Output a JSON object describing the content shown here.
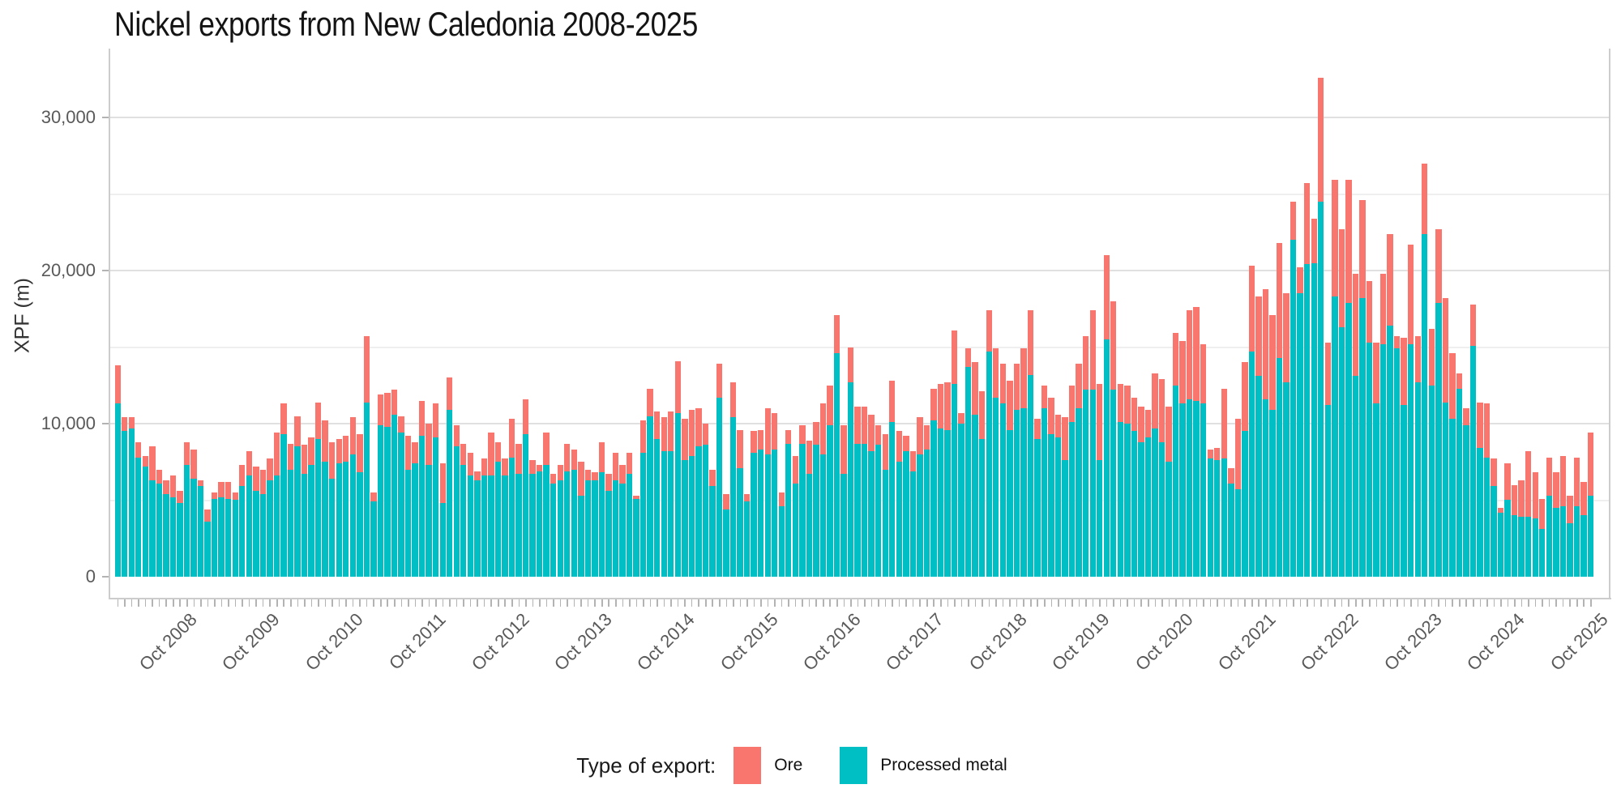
{
  "title": "Nickel exports from New Caledonia 2008-2025",
  "y_axis": {
    "title": "XPF (m)",
    "tick_labels": [
      "0",
      "10,000",
      "20,000",
      "30,000"
    ],
    "tick_values": [
      0,
      10000,
      20000,
      30000
    ],
    "minor_grid_values": [
      5000,
      15000,
      25000
    ]
  },
  "x_axis": {
    "ticks": [
      {
        "label": "Oct 2008",
        "month": "2008-10"
      },
      {
        "label": "Oct 2009",
        "month": "2009-10"
      },
      {
        "label": "Oct 2010",
        "month": "2010-10"
      },
      {
        "label": "Oct 2011",
        "month": "2011-10"
      },
      {
        "label": "Oct 2012",
        "month": "2012-10"
      },
      {
        "label": "Oct 2013",
        "month": "2013-10"
      },
      {
        "label": "Oct 2014",
        "month": "2014-10"
      },
      {
        "label": "Oct 2015",
        "month": "2015-10"
      },
      {
        "label": "Oct 2016",
        "month": "2016-10"
      },
      {
        "label": "Oct 2017",
        "month": "2017-10"
      },
      {
        "label": "Oct 2018",
        "month": "2018-10"
      },
      {
        "label": "Oct 2019",
        "month": "2019-10"
      },
      {
        "label": "Oct 2020",
        "month": "2020-10"
      },
      {
        "label": "Oct 2021",
        "month": "2021-10"
      },
      {
        "label": "Oct 2022",
        "month": "2022-10"
      },
      {
        "label": "Oct 2023",
        "month": "2023-10"
      },
      {
        "label": "Oct 2024",
        "month": "2024-10"
      },
      {
        "label": "Oct 2025",
        "month": "2025-10"
      }
    ]
  },
  "legend": {
    "title": "Type of export:",
    "items": [
      {
        "label": "Ore",
        "color": "#F8766D"
      },
      {
        "label": "Processed metal",
        "color": "#00BFC4"
      }
    ]
  },
  "colors": {
    "ore": "#F8766D",
    "processed_metal": "#00BFC4",
    "grid_major": "#e0e0e0",
    "grid_minor": "#efefef",
    "axis_line": "#cccccc",
    "tick_mark": "#b3b3b3",
    "axis_text": "#595959",
    "title_text": "#141414"
  },
  "chart_data": {
    "type": "bar",
    "stacked": true,
    "title": "Nickel exports from New Caledonia 2008-2025",
    "xlabel": "",
    "ylabel": "XPF (m)",
    "ylim": [
      0,
      34000
    ],
    "grid": true,
    "legend_position": "bottom",
    "x": [
      "2008-01",
      "2008-02",
      "2008-03",
      "2008-04",
      "2008-05",
      "2008-06",
      "2008-07",
      "2008-08",
      "2008-09",
      "2008-10",
      "2008-11",
      "2008-12",
      "2009-01",
      "2009-02",
      "2009-03",
      "2009-04",
      "2009-05",
      "2009-06",
      "2009-07",
      "2009-08",
      "2009-09",
      "2009-10",
      "2009-11",
      "2009-12",
      "2010-01",
      "2010-02",
      "2010-03",
      "2010-04",
      "2010-05",
      "2010-06",
      "2010-07",
      "2010-08",
      "2010-09",
      "2010-10",
      "2010-11",
      "2010-12",
      "2011-01",
      "2011-02",
      "2011-03",
      "2011-04",
      "2011-05",
      "2011-06",
      "2011-07",
      "2011-08",
      "2011-09",
      "2011-10",
      "2011-11",
      "2011-12",
      "2012-01",
      "2012-02",
      "2012-03",
      "2012-04",
      "2012-05",
      "2012-06",
      "2012-07",
      "2012-08",
      "2012-09",
      "2012-10",
      "2012-11",
      "2012-12",
      "2013-01",
      "2013-02",
      "2013-03",
      "2013-04",
      "2013-05",
      "2013-06",
      "2013-07",
      "2013-08",
      "2013-09",
      "2013-10",
      "2013-11",
      "2013-12",
      "2014-01",
      "2014-02",
      "2014-03",
      "2014-04",
      "2014-05",
      "2014-06",
      "2014-07",
      "2014-08",
      "2014-09",
      "2014-10",
      "2014-11",
      "2014-12",
      "2015-01",
      "2015-02",
      "2015-03",
      "2015-04",
      "2015-05",
      "2015-06",
      "2015-07",
      "2015-08",
      "2015-09",
      "2015-10",
      "2015-11",
      "2015-12",
      "2016-01",
      "2016-02",
      "2016-03",
      "2016-04",
      "2016-05",
      "2016-06",
      "2016-07",
      "2016-08",
      "2016-09",
      "2016-10",
      "2016-11",
      "2016-12",
      "2017-01",
      "2017-02",
      "2017-03",
      "2017-04",
      "2017-05",
      "2017-06",
      "2017-07",
      "2017-08",
      "2017-09",
      "2017-10",
      "2017-11",
      "2017-12",
      "2018-01",
      "2018-02",
      "2018-03",
      "2018-04",
      "2018-05",
      "2018-06",
      "2018-07",
      "2018-08",
      "2018-09",
      "2018-10",
      "2018-11",
      "2018-12",
      "2019-01",
      "2019-02",
      "2019-03",
      "2019-04",
      "2019-05",
      "2019-06",
      "2019-07",
      "2019-08",
      "2019-09",
      "2019-10",
      "2019-11",
      "2019-12",
      "2020-01",
      "2020-02",
      "2020-03",
      "2020-04",
      "2020-05",
      "2020-06",
      "2020-07",
      "2020-08",
      "2020-09",
      "2020-10",
      "2020-11",
      "2020-12",
      "2021-01",
      "2021-02",
      "2021-03",
      "2021-04",
      "2021-05",
      "2021-06",
      "2021-07",
      "2021-08",
      "2021-09",
      "2021-10",
      "2021-11",
      "2021-12",
      "2022-01",
      "2022-02",
      "2022-03",
      "2022-04",
      "2022-05",
      "2022-06",
      "2022-07",
      "2022-08",
      "2022-09",
      "2022-10",
      "2022-11",
      "2022-12",
      "2023-01",
      "2023-02",
      "2023-03",
      "2023-04",
      "2023-05",
      "2023-06",
      "2023-07",
      "2023-08",
      "2023-09",
      "2023-10",
      "2023-11",
      "2023-12",
      "2024-01",
      "2024-02",
      "2024-03",
      "2024-04",
      "2024-05",
      "2024-06",
      "2024-07",
      "2024-08",
      "2024-09",
      "2024-10",
      "2024-11",
      "2024-12",
      "2025-01",
      "2025-02",
      "2025-03",
      "2025-04",
      "2025-05",
      "2025-06",
      "2025-07",
      "2025-08",
      "2025-09",
      "2025-10"
    ],
    "series": [
      {
        "name": "Processed metal",
        "color": "#00BFC4",
        "values": [
          11300,
          9500,
          9700,
          7800,
          7200,
          6300,
          6100,
          5400,
          5200,
          4800,
          7300,
          6400,
          5900,
          3600,
          5100,
          5200,
          5100,
          5000,
          5900,
          6600,
          5600,
          5400,
          6300,
          6600,
          9300,
          7000,
          8500,
          6700,
          7300,
          9000,
          7500,
          6400,
          7400,
          7500,
          8000,
          6800,
          11400,
          4900,
          9900,
          9800,
          10600,
          9400,
          7000,
          7400,
          9200,
          7300,
          9100,
          4800,
          10900,
          8500,
          7300,
          6600,
          6300,
          6600,
          6600,
          7500,
          6600,
          7800,
          6700,
          9300,
          6700,
          6900,
          7300,
          6100,
          6300,
          6900,
          7000,
          5300,
          6300,
          6300,
          6800,
          5600,
          6300,
          6100,
          6700,
          5100,
          8100,
          10500,
          9000,
          8200,
          8200,
          10700,
          7600,
          7900,
          8500,
          8600,
          5900,
          11700,
          4400,
          10400,
          7100,
          4900,
          8100,
          8300,
          8000,
          8300,
          4600,
          8700,
          6100,
          8700,
          6700,
          8600,
          8000,
          9900,
          14600,
          6700,
          12700,
          8700,
          8700,
          8200,
          8600,
          7000,
          10100,
          7500,
          8200,
          6900,
          8000,
          8300,
          10200,
          9700,
          9600,
          12600,
          10000,
          13700,
          10600,
          9000,
          14700,
          11700,
          11300,
          9600,
          10900,
          11000,
          13200,
          9000,
          11000,
          9300,
          9100,
          7600,
          10100,
          11000,
          12200,
          12200,
          7600,
          15500,
          12200,
          10100,
          10000,
          9500,
          8800,
          9100,
          9700,
          8800,
          7500,
          12500,
          11300,
          11600,
          11500,
          11300,
          7700,
          7600,
          7700,
          6100,
          5700,
          9500,
          14700,
          13100,
          11600,
          10900,
          14300,
          12700,
          22000,
          18500,
          20400,
          20500,
          24500,
          11200,
          18300,
          16300,
          17900,
          13100,
          18200,
          15300,
          11300,
          15200,
          16400,
          14900,
          11200,
          15200,
          12700,
          22400,
          12500,
          17900,
          11400,
          10300,
          12300,
          9900,
          15100,
          8400,
          7800,
          5900,
          4200,
          5000,
          4000,
          3900,
          3900,
          3800,
          3100,
          5300,
          4500,
          4600,
          3500,
          4600,
          4000,
          5300
        ]
      },
      {
        "name": "Ore",
        "color": "#F8766D",
        "values": [
          2500,
          900,
          700,
          1000,
          700,
          2200,
          900,
          900,
          1400,
          800,
          1500,
          1900,
          400,
          800,
          400,
          1000,
          1100,
          500,
          1400,
          1600,
          1600,
          1600,
          1400,
          2800,
          2000,
          1700,
          2000,
          1900,
          1800,
          2400,
          2700,
          2400,
          1600,
          1700,
          2400,
          2500,
          4300,
          600,
          2000,
          2200,
          1600,
          1100,
          2200,
          1400,
          2300,
          2700,
          2200,
          2600,
          2100,
          1400,
          1400,
          1500,
          600,
          1100,
          2800,
          1300,
          1100,
          2500,
          2000,
          2300,
          900,
          400,
          2100,
          600,
          1000,
          1800,
          1300,
          2200,
          700,
          500,
          2000,
          1100,
          1800,
          1200,
          1400,
          200,
          2100,
          1800,
          1800,
          2200,
          2600,
          3400,
          2700,
          3000,
          2500,
          1400,
          1100,
          2200,
          1000,
          2300,
          2500,
          500,
          1400,
          1300,
          3000,
          2400,
          900,
          900,
          1800,
          1200,
          2200,
          1500,
          3300,
          2600,
          2500,
          3200,
          2300,
          2400,
          2400,
          2400,
          1300,
          2300,
          2700,
          2000,
          1000,
          1300,
          2400,
          1600,
          2100,
          2900,
          3100,
          3500,
          700,
          1200,
          3400,
          3100,
          2700,
          3200,
          2600,
          3200,
          3000,
          3900,
          4200,
          1300,
          1500,
          2400,
          1500,
          2800,
          2400,
          2900,
          3500,
          5200,
          5000,
          5500,
          5800,
          2500,
          2500,
          2200,
          2300,
          1800,
          3600,
          4100,
          3600,
          3400,
          4100,
          5800,
          6100,
          3900,
          600,
          800,
          4600,
          1000,
          4600,
          4500,
          5600,
          5200,
          7200,
          6200,
          7500,
          5800,
          2500,
          1700,
          5300,
          2900,
          8100,
          4100,
          7600,
          6400,
          8000,
          6700,
          6400,
          4000,
          4000,
          4600,
          6000,
          800,
          4400,
          6500,
          3000,
          4600,
          3700,
          4800,
          6800,
          4300,
          1000,
          1100,
          2700,
          3000,
          3500,
          1800,
          300,
          2400,
          2000,
          2400,
          4300,
          3000,
          2000,
          2500,
          2300,
          3300,
          1800,
          3200,
          2200,
          4100
        ]
      }
    ]
  }
}
